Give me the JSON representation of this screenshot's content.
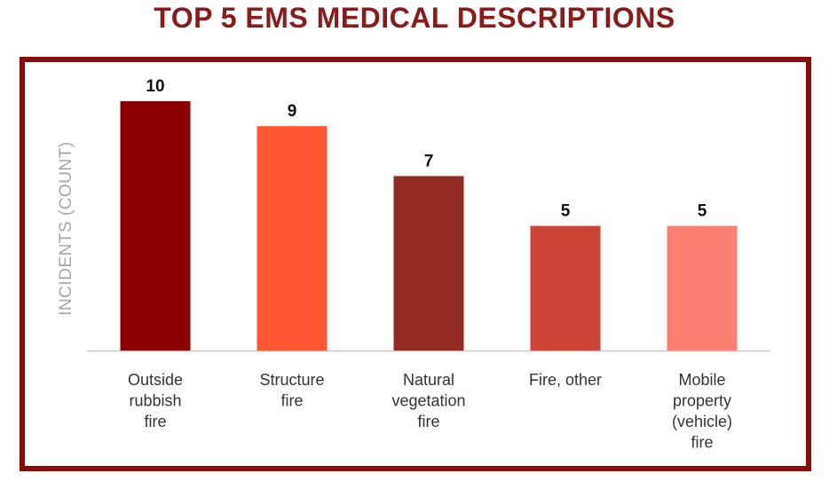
{
  "theme": {
    "title_color": "#8b1a1a",
    "frame_color": "#8b0a0a",
    "axis_color": "#c8c8c8"
  },
  "chart_data": {
    "type": "bar",
    "title": "TOP 5 EMS MEDICAL DESCRIPTIONS",
    "ylabel": "INCIDENTS (COUNT)",
    "xlabel": "",
    "ylim": [
      0,
      10.5
    ],
    "grid": false,
    "legend": "none",
    "categories": [
      [
        "Outside",
        "rubbish",
        "fire"
      ],
      [
        "Structure",
        "fire"
      ],
      [
        "Natural",
        "vegetation",
        "fire"
      ],
      [
        "Fire, other"
      ],
      [
        "Mobile",
        "property",
        "(vehicle)",
        "fire"
      ]
    ],
    "values": [
      10,
      9,
      7,
      5,
      5
    ],
    "value_labels": [
      "10",
      "9",
      "7",
      "5",
      "5"
    ],
    "colors": [
      "#8b0000",
      "#ff5733",
      "#922b21",
      "#cb4335",
      "#fa8072"
    ]
  }
}
